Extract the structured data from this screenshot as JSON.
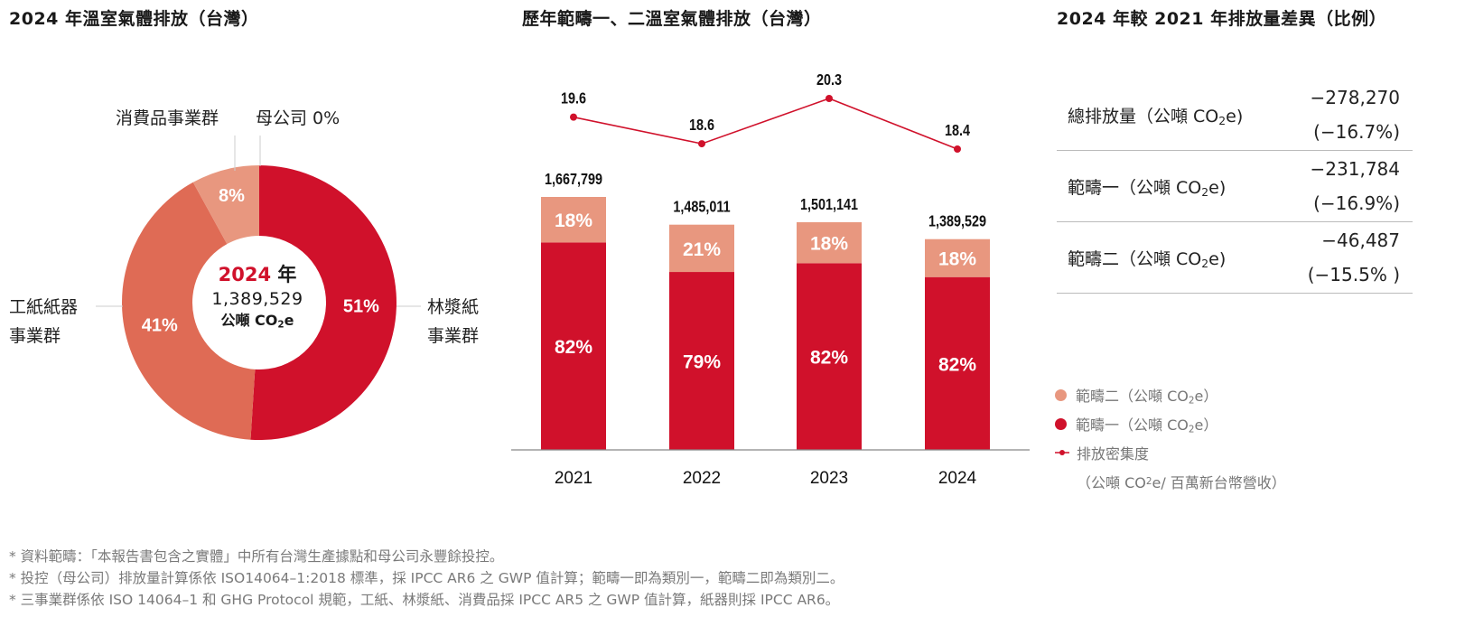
{
  "donut": {
    "title": "2024 年溫室氣體排放（台灣）",
    "center": {
      "year": "2024",
      "year_suffix": "年",
      "total": "1,389,529",
      "unit_prefix": "公噸 CO",
      "unit_sub": "2",
      "unit_suffix": "e"
    },
    "labels": {
      "consumer": "消費品事業群",
      "parent": "母公司 0%",
      "industrial_line1": "工紙紙器",
      "industrial_line2": "事業群",
      "pulp_line1": "林漿紙",
      "pulp_line2": "事業群"
    }
  },
  "bars": {
    "title": "歷年範疇一、二溫室氣體排放（台灣）"
  },
  "diff": {
    "title": "2024 年較 2021 年排放量差異（比例）",
    "rows": [
      {
        "label": "總排放量（公噸 CO",
        "label_sub": "2",
        "label_end": "e)",
        "value": "−278,270",
        "pct": "(−16.7%)"
      },
      {
        "label": "範疇一（公噸 CO",
        "label_sub": "2",
        "label_end": "e)",
        "value": "−231,784",
        "pct": "(−16.9%)"
      },
      {
        "label": "範疇二（公噸 CO",
        "label_sub": "2",
        "label_end": "e)",
        "value": "−46,487",
        "pct": "(−15.5% )"
      }
    ]
  },
  "legend": {
    "scope2": {
      "label": "範疇二（公噸 CO",
      "sub": "2",
      "end": "e）",
      "color": "#E8977F"
    },
    "scope1": {
      "label": "範疇一（公噸 CO",
      "sub": "2",
      "end": "e）",
      "color": "#D0112B"
    },
    "intensity": {
      "label": "排放密集度",
      "unit": "（公噸 CO",
      "sub": "2",
      "end": "e/ 百萬新台幣營收）",
      "color": "#D0112B"
    }
  },
  "footnotes": [
    "* 資料範疇：「本報告書包含之實體」中所有台灣生產據點和母公司永豐餘投控。",
    "* 投控（母公司）排放量計算係依 ISO14064–1:2018 標準，採 IPCC AR6 之 GWP 值計算；範疇一即為類別一，範疇二即為類別二。",
    "* 三事業群係依 ISO 14064–1 和 GHG Protocol 規範，工紙、林漿紙、消費品採 IPCC AR5 之 GWP 值計算，紙器則採 IPCC AR6。"
  ],
  "colors": {
    "primary": "#D0112B",
    "secondary": "#DF6B55",
    "tertiary": "#E8977F",
    "axis": "#888888"
  },
  "chart_data": [
    {
      "type": "pie",
      "title": "2024 年溫室氣體排放（台灣）",
      "categories": [
        "林漿紙事業群",
        "工紙紙器事業群",
        "消費品事業群",
        "母公司"
      ],
      "values": [
        51,
        41,
        8,
        0
      ],
      "value_labels": [
        "51%",
        "41%",
        "8%",
        "0%"
      ],
      "colors": [
        "#D0112B",
        "#DF6B55",
        "#E8977F",
        "#E8977F"
      ],
      "donut": true,
      "center_text": "2024 年 1,389,529 公噸 CO2e"
    },
    {
      "type": "bar",
      "stacked": true,
      "title": "歷年範疇一、二溫室氣體排放（台灣）",
      "categories": [
        "2021",
        "2022",
        "2023",
        "2024"
      ],
      "totals": [
        1667799,
        1485011,
        1501141,
        1389529
      ],
      "total_labels": [
        "1,667,799",
        "1,485,011",
        "1,501,141",
        "1,389,529"
      ],
      "series": [
        {
          "name": "範疇一（公噸 CO2e）",
          "share_pct": [
            82,
            79,
            82,
            82
          ],
          "labels": [
            "82%",
            "79%",
            "82%",
            "82%"
          ],
          "color": "#D0112B"
        },
        {
          "name": "範疇二（公噸 CO2e）",
          "share_pct": [
            18,
            21,
            18,
            18
          ],
          "labels": [
            "18%",
            "21%",
            "18%",
            "18%"
          ],
          "color": "#E8977F"
        }
      ],
      "ylim": [
        0,
        1800000
      ],
      "grid": false,
      "legend": "right"
    },
    {
      "type": "line",
      "title": "排放密集度（公噸 CO2e/ 百萬新台幣營收）",
      "categories": [
        "2021",
        "2022",
        "2023",
        "2024"
      ],
      "values": [
        19.6,
        18.6,
        20.3,
        18.4
      ],
      "value_labels": [
        "19.6",
        "18.6",
        "20.3",
        "18.4"
      ],
      "color": "#D0112B"
    }
  ]
}
